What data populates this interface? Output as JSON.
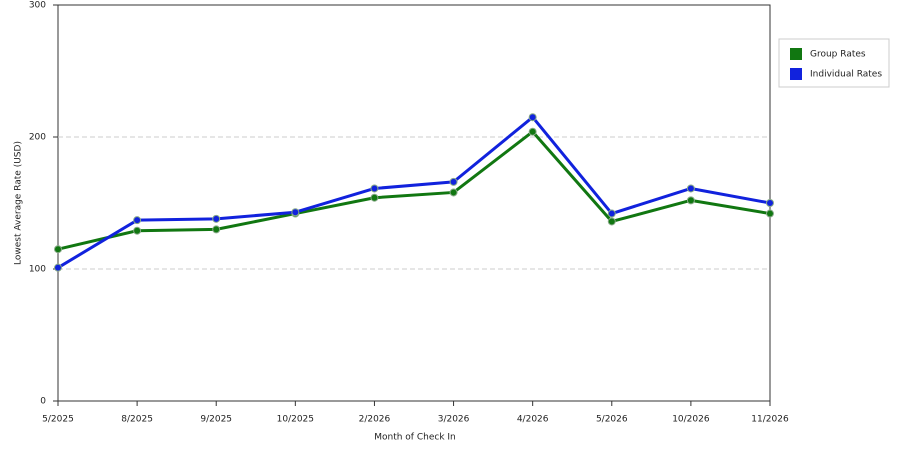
{
  "chart_data": {
    "type": "line",
    "x_label": "Month of Check In",
    "y_label": "Lowest Average Rate (USD)",
    "categories": [
      "5/2025",
      "8/2025",
      "9/2025",
      "10/2025",
      "2/2026",
      "3/2026",
      "4/2026",
      "5/2026",
      "10/2026",
      "11/2026"
    ],
    "series": [
      {
        "name": "Group Rates",
        "color": "#117711",
        "values": [
          115,
          129,
          130,
          142,
          154,
          158,
          204,
          136,
          152,
          142
        ]
      },
      {
        "name": "Individual Rates",
        "color": "#1122dd",
        "values": [
          101,
          137,
          138,
          143,
          161,
          166,
          215,
          142,
          161,
          150
        ]
      }
    ],
    "ylim": [
      0,
      300
    ],
    "yticks": [
      0,
      100,
      200,
      300
    ],
    "grid": true,
    "legend": "right"
  }
}
